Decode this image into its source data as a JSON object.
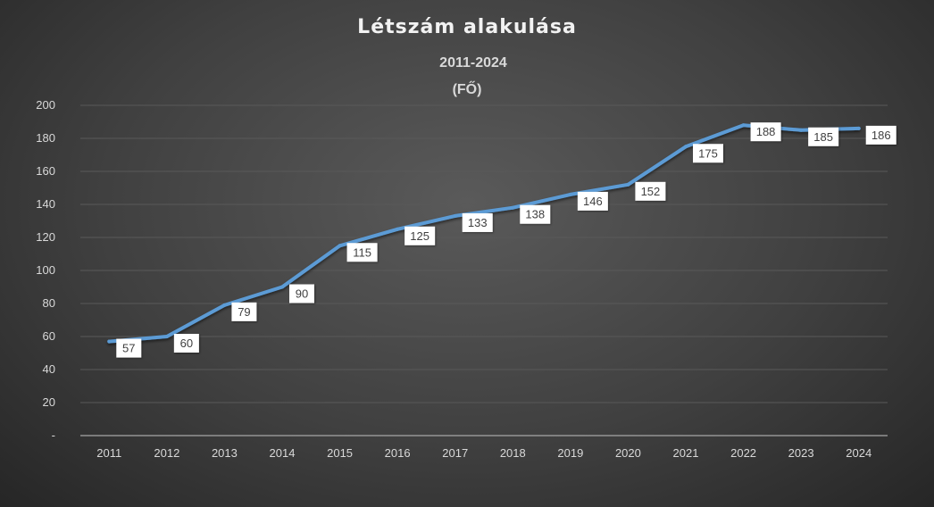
{
  "chart_data": {
    "type": "line",
    "title": "Létszám alakulása",
    "subtitle_line1": "2011-2024",
    "subtitle_line2": "(FŐ)",
    "xlabel": "",
    "ylabel": "",
    "categories": [
      "2011",
      "2012",
      "2013",
      "2014",
      "2015",
      "2016",
      "2017",
      "2018",
      "2019",
      "2020",
      "2021",
      "2022",
      "2023",
      "2024"
    ],
    "series": [
      {
        "values": [
          57,
          60,
          79,
          90,
          115,
          125,
          133,
          138,
          146,
          152,
          175,
          188,
          185,
          186
        ]
      }
    ],
    "ylim": [
      0,
      200
    ],
    "y_ticks": [
      0,
      20,
      40,
      60,
      80,
      100,
      120,
      140,
      160,
      180,
      200
    ],
    "y_tick_labels": [
      "-",
      "20",
      "40",
      "60",
      "80",
      "100",
      "120",
      "140",
      "160",
      "180",
      "200"
    ],
    "grid": true,
    "legend": "none",
    "data_labels": true,
    "line_color": "#5b9bd5",
    "background_color": "#404040",
    "gridline_color": "#595959",
    "text_color": "#d9d9d9"
  }
}
